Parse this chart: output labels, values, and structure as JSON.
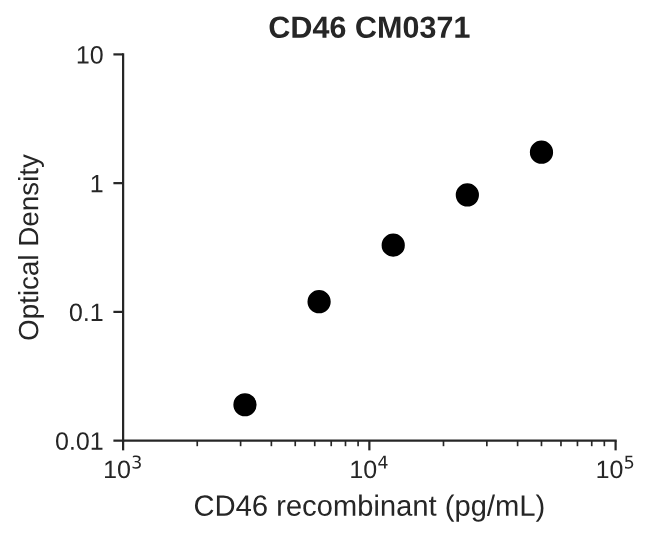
{
  "chart_data": {
    "type": "scatter",
    "title": "CD46 CM0371",
    "xlabel": "CD46 recombinant (pg/mL)",
    "ylabel": "Optical Density",
    "x": [
      3125,
      6250,
      12500,
      25000,
      50000
    ],
    "series": [
      {
        "color": "#000000",
        "values": [
          0.019,
          0.12,
          0.33,
          0.81,
          1.74
        ]
      }
    ],
    "log": "xy",
    "marker": "circle",
    "grid": false,
    "xlim": [
      1000,
      100000
    ],
    "xticks": [
      {
        "value": 1000,
        "label": "10$^{3}$"
      },
      {
        "value": 10000,
        "label": "10$^{4}$"
      },
      {
        "value": 100000,
        "label": "10$^{5}$"
      }
    ],
    "ylim": [
      0.01,
      10
    ],
    "yticks": [
      0.01,
      0.1,
      1,
      10
    ]
  }
}
